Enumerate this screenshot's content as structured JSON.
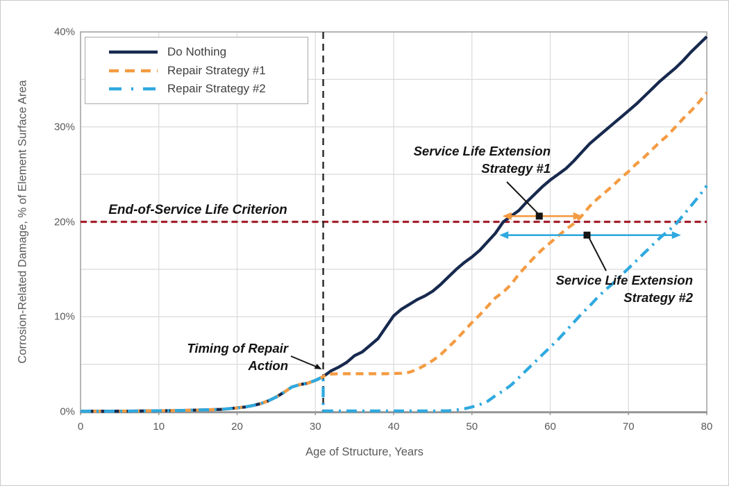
{
  "chart_data": {
    "type": "line",
    "title": "",
    "xlabel": "Age of Structure, Years",
    "ylabel": "Corrosion-Related Damage, % of Element Surface Area",
    "xlim": [
      0,
      80
    ],
    "ylim": [
      0,
      40
    ],
    "x_ticks": [
      0,
      10,
      20,
      30,
      40,
      50,
      60,
      70,
      80
    ],
    "x_tick_labels": [
      "0",
      "10",
      "20",
      "30",
      "40",
      "50",
      "60",
      "70",
      "80"
    ],
    "y_ticks": [
      0,
      10,
      20,
      30,
      40
    ],
    "y_tick_labels": [
      "0%",
      "10%",
      "20%",
      "30%",
      "40%"
    ],
    "grid": {
      "vertical_every_years": 10,
      "horizontal_every_percent": 5,
      "color": "#dadada"
    },
    "legend_position": "top-left-inside",
    "series": [
      {
        "name": "Do Nothing",
        "color": "#17294e",
        "style": "solid",
        "points": [
          [
            0,
            0.05
          ],
          [
            2,
            0.05
          ],
          [
            4,
            0.05
          ],
          [
            6,
            0.06
          ],
          [
            8,
            0.08
          ],
          [
            10,
            0.1
          ],
          [
            12,
            0.12
          ],
          [
            14,
            0.15
          ],
          [
            16,
            0.2
          ],
          [
            18,
            0.25
          ],
          [
            20,
            0.4
          ],
          [
            21,
            0.5
          ],
          [
            22,
            0.65
          ],
          [
            23,
            0.85
          ],
          [
            24,
            1.15
          ],
          [
            25,
            1.55
          ],
          [
            26,
            2.05
          ],
          [
            27,
            2.6
          ],
          [
            28,
            2.85
          ],
          [
            29,
            3.0
          ],
          [
            30,
            3.3
          ],
          [
            31,
            3.7
          ],
          [
            32,
            4.3
          ],
          [
            33,
            4.7
          ],
          [
            34,
            5.2
          ],
          [
            35,
            5.9
          ],
          [
            36,
            6.3
          ],
          [
            37,
            7.0
          ],
          [
            38,
            7.7
          ],
          [
            39,
            8.9
          ],
          [
            40,
            10.1
          ],
          [
            41,
            10.8
          ],
          [
            42,
            11.3
          ],
          [
            43,
            11.8
          ],
          [
            44,
            12.2
          ],
          [
            45,
            12.7
          ],
          [
            46,
            13.4
          ],
          [
            47,
            14.2
          ],
          [
            48,
            15.0
          ],
          [
            49,
            15.7
          ],
          [
            50,
            16.3
          ],
          [
            51,
            17.0
          ],
          [
            52,
            17.9
          ],
          [
            53,
            18.8
          ],
          [
            54,
            20.0
          ],
          [
            55,
            20.6
          ],
          [
            56,
            21.2
          ],
          [
            57,
            22.1
          ],
          [
            58,
            22.9
          ],
          [
            59,
            23.7
          ],
          [
            60,
            24.4
          ],
          [
            61,
            25.0
          ],
          [
            62,
            25.6
          ],
          [
            63,
            26.4
          ],
          [
            64,
            27.3
          ],
          [
            65,
            28.2
          ],
          [
            66,
            28.9
          ],
          [
            67,
            29.6
          ],
          [
            68,
            30.3
          ],
          [
            69,
            31.0
          ],
          [
            70,
            31.7
          ],
          [
            71,
            32.4
          ],
          [
            72,
            33.2
          ],
          [
            73,
            34.0
          ],
          [
            74,
            34.8
          ],
          [
            75,
            35.5
          ],
          [
            76,
            36.2
          ],
          [
            77,
            37.0
          ],
          [
            78,
            37.9
          ],
          [
            79,
            38.7
          ],
          [
            80,
            39.5
          ]
        ]
      },
      {
        "name": "Repair Strategy #1",
        "color": "#f49b42",
        "style": "dashed",
        "points": [
          [
            0,
            0.05
          ],
          [
            2,
            0.05
          ],
          [
            4,
            0.05
          ],
          [
            6,
            0.06
          ],
          [
            8,
            0.08
          ],
          [
            10,
            0.1
          ],
          [
            12,
            0.12
          ],
          [
            14,
            0.15
          ],
          [
            16,
            0.2
          ],
          [
            18,
            0.25
          ],
          [
            20,
            0.4
          ],
          [
            21,
            0.5
          ],
          [
            22,
            0.65
          ],
          [
            23,
            0.85
          ],
          [
            24,
            1.15
          ],
          [
            25,
            1.55
          ],
          [
            26,
            2.05
          ],
          [
            27,
            2.6
          ],
          [
            28,
            2.85
          ],
          [
            29,
            3.0
          ],
          [
            30,
            3.3
          ],
          [
            31,
            3.7
          ],
          [
            31.5,
            3.95
          ],
          [
            33,
            4.0
          ],
          [
            36,
            4.0
          ],
          [
            39,
            4.0
          ],
          [
            41,
            4.05
          ],
          [
            42,
            4.15
          ],
          [
            43,
            4.45
          ],
          [
            44,
            4.9
          ],
          [
            45,
            5.4
          ],
          [
            46,
            6.0
          ],
          [
            47,
            6.8
          ],
          [
            48,
            7.6
          ],
          [
            49,
            8.5
          ],
          [
            50,
            9.4
          ],
          [
            51,
            10.2
          ],
          [
            52,
            11.1
          ],
          [
            53,
            12.0
          ],
          [
            54,
            12.6
          ],
          [
            55,
            13.4
          ],
          [
            56,
            14.5
          ],
          [
            57,
            15.4
          ],
          [
            58,
            16.3
          ],
          [
            59,
            17.1
          ],
          [
            60,
            17.8
          ],
          [
            61,
            18.5
          ],
          [
            62,
            19.2
          ],
          [
            63,
            19.8
          ],
          [
            64,
            20.6
          ],
          [
            65,
            21.6
          ],
          [
            66,
            22.4
          ],
          [
            67,
            23.1
          ],
          [
            68,
            23.8
          ],
          [
            69,
            24.6
          ],
          [
            70,
            25.3
          ],
          [
            71,
            26.1
          ],
          [
            72,
            26.8
          ],
          [
            73,
            27.6
          ],
          [
            74,
            28.4
          ],
          [
            75,
            29.1
          ],
          [
            76,
            30.0
          ],
          [
            77,
            30.9
          ],
          [
            78,
            31.7
          ],
          [
            79,
            32.6
          ],
          [
            80,
            33.6
          ]
        ]
      },
      {
        "name": "Repair Strategy #2",
        "color": "#2fa9df",
        "style": "dash-dot",
        "points": [
          [
            0,
            0.05
          ],
          [
            2,
            0.05
          ],
          [
            4,
            0.05
          ],
          [
            6,
            0.06
          ],
          [
            8,
            0.08
          ],
          [
            10,
            0.1
          ],
          [
            12,
            0.12
          ],
          [
            14,
            0.15
          ],
          [
            16,
            0.2
          ],
          [
            18,
            0.25
          ],
          [
            20,
            0.4
          ],
          [
            21,
            0.5
          ],
          [
            22,
            0.65
          ],
          [
            23,
            0.85
          ],
          [
            24,
            1.15
          ],
          [
            25,
            1.55
          ],
          [
            26,
            2.05
          ],
          [
            27,
            2.6
          ],
          [
            28,
            2.85
          ],
          [
            29,
            3.0
          ],
          [
            30,
            3.3
          ],
          [
            31,
            3.7
          ],
          [
            31,
            0.08
          ],
          [
            33,
            0.08
          ],
          [
            36,
            0.08
          ],
          [
            39,
            0.08
          ],
          [
            42,
            0.08
          ],
          [
            45,
            0.08
          ],
          [
            47,
            0.1
          ],
          [
            48,
            0.18
          ],
          [
            49,
            0.3
          ],
          [
            50,
            0.5
          ],
          [
            51,
            0.75
          ],
          [
            52,
            1.1
          ],
          [
            53,
            1.7
          ],
          [
            54,
            2.2
          ],
          [
            55,
            2.8
          ],
          [
            56,
            3.6
          ],
          [
            57,
            4.4
          ],
          [
            58,
            5.2
          ],
          [
            59,
            6.0
          ],
          [
            60,
            6.8
          ],
          [
            61,
            7.6
          ],
          [
            62,
            8.5
          ],
          [
            63,
            9.4
          ],
          [
            64,
            10.3
          ],
          [
            65,
            11.1
          ],
          [
            66,
            12.0
          ],
          [
            67,
            12.8
          ],
          [
            68,
            13.5
          ],
          [
            69,
            14.3
          ],
          [
            70,
            15.1
          ],
          [
            71,
            15.9
          ],
          [
            72,
            16.7
          ],
          [
            73,
            17.5
          ],
          [
            74,
            18.3
          ],
          [
            75,
            19.0
          ],
          [
            76,
            19.7
          ],
          [
            77,
            20.7
          ],
          [
            78,
            21.7
          ],
          [
            79,
            22.7
          ],
          [
            80,
            23.8
          ]
        ]
      }
    ],
    "reference_lines": [
      {
        "id": "eol",
        "orientation": "horizontal",
        "value_percent": 20,
        "color": "#a5202c",
        "style": "dashed"
      },
      {
        "id": "repair-time",
        "orientation": "vertical",
        "value_year": 31,
        "color": "#262626",
        "style": "dashed"
      }
    ],
    "annotations": {
      "end_of_service": {
        "text": "End-of-Service Life Criterion",
        "at_percent": 20
      },
      "timing": {
        "line1": "Timing of Repair",
        "line2": "Action",
        "points_to_year": 31
      },
      "sle1": {
        "line1": "Service Life Extension",
        "line2": "Strategy #1",
        "arrow_color": "#f49b42",
        "arrow_from_year": 53.9,
        "arrow_to_year": 64.1,
        "arrow_at_percent": 20.6,
        "marker_at_year": 58.6
      },
      "sle2": {
        "line1": "Service Life Extension",
        "line2": "Strategy #2",
        "arrow_color": "#2fa9df",
        "arrow_from_year": 53.5,
        "arrow_to_year": 76.7,
        "arrow_at_percent": 18.6,
        "marker_at_year": 64.7
      }
    }
  },
  "axes": {
    "x_title": "Age of Structure, Years",
    "y_title": "Corrosion-Related Damage, % of Element Surface Area"
  },
  "legend": {
    "items": [
      {
        "label": "Do Nothing"
      },
      {
        "label": "Repair Strategy #1"
      },
      {
        "label": "Repair Strategy #2"
      }
    ]
  }
}
